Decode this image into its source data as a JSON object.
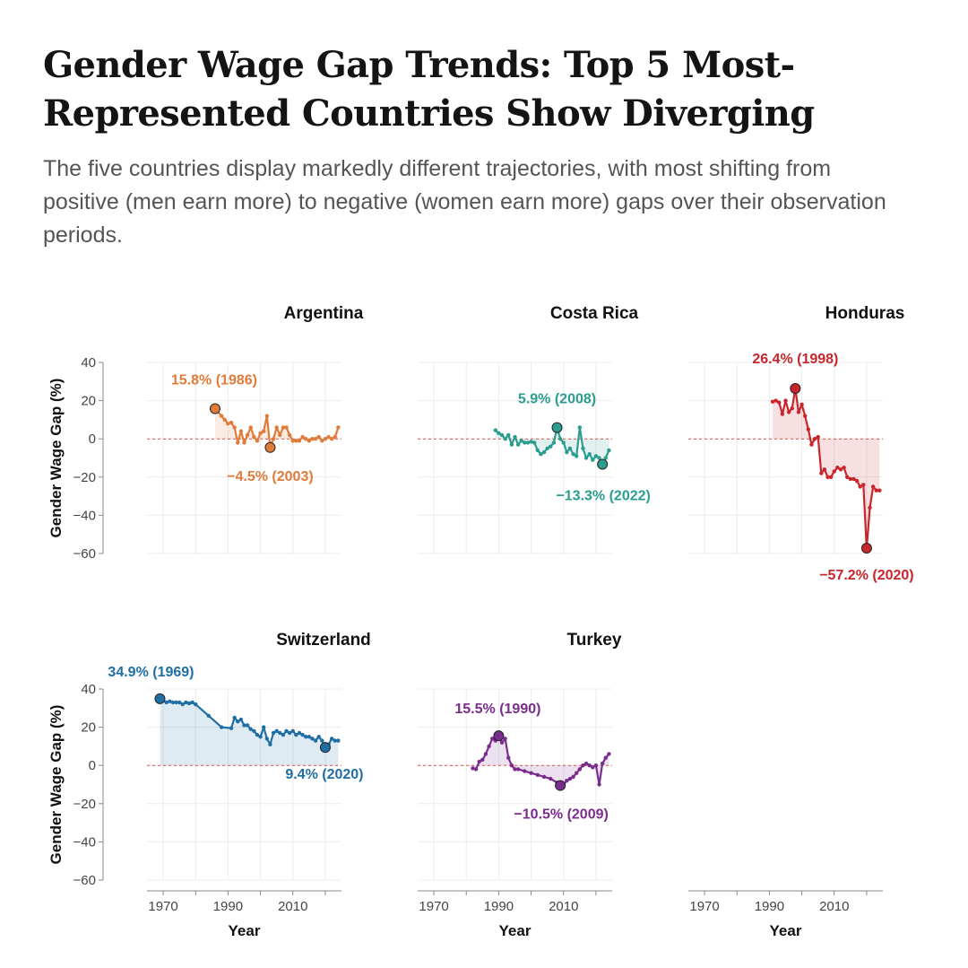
{
  "title": "Gender Wage Gap Trends: Top 5 Most-Represented Countries Show Diverging",
  "subtitle": "The five countries display markedly different trajectories, with most shifting from positive (men earn more) to negative (women earn more) gaps over their observation periods.",
  "chart_data": {
    "type": "line",
    "xlabel": "Year",
    "ylabel": "Gender Wage Gap (%)",
    "xlim": [
      1965,
      2025
    ],
    "ylim": [
      -60,
      40
    ],
    "x_ticks": [
      1970,
      1990,
      2010
    ],
    "y_ticks": [
      40,
      20,
      0,
      -20,
      -40,
      -60
    ],
    "reference_line": 0,
    "series": [
      {
        "name": "Argentina",
        "color": "#e07b39",
        "points": [
          [
            1986,
            15.8
          ],
          [
            1988,
            12
          ],
          [
            1989,
            10
          ],
          [
            1990,
            8
          ],
          [
            1991,
            8.5
          ],
          [
            1992,
            6
          ],
          [
            1993,
            -2
          ],
          [
            1994,
            4
          ],
          [
            1995,
            -2
          ],
          [
            1996,
            2
          ],
          [
            1997,
            6
          ],
          [
            1998,
            1
          ],
          [
            1999,
            -1
          ],
          [
            2000,
            3
          ],
          [
            2001,
            4
          ],
          [
            2002,
            12
          ],
          [
            2003,
            -4.5
          ],
          [
            2004,
            0
          ],
          [
            2005,
            6
          ],
          [
            2006,
            2
          ],
          [
            2007,
            6
          ],
          [
            2008,
            6
          ],
          [
            2009,
            2
          ],
          [
            2010,
            -1
          ],
          [
            2011,
            -1
          ],
          [
            2012,
            -1
          ],
          [
            2013,
            1
          ],
          [
            2014,
            0
          ],
          [
            2015,
            -1
          ],
          [
            2016,
            0
          ],
          [
            2017,
            0
          ],
          [
            2018,
            1
          ],
          [
            2019,
            -1
          ],
          [
            2020,
            0
          ],
          [
            2021,
            1
          ],
          [
            2022,
            0
          ],
          [
            2023,
            1
          ],
          [
            2024,
            6
          ]
        ],
        "annotations": [
          {
            "label": "15.8% (1986)",
            "x": 1986,
            "y": 15.8
          },
          {
            "label": "−4.5% (2003)",
            "x": 2003,
            "y": -4.5
          }
        ]
      },
      {
        "name": "Costa Rica",
        "color": "#2a9d8f",
        "points": [
          [
            1989,
            4.5
          ],
          [
            1990,
            3
          ],
          [
            1991,
            2
          ],
          [
            1992,
            0
          ],
          [
            1993,
            2
          ],
          [
            1994,
            -3
          ],
          [
            1995,
            1
          ],
          [
            1996,
            -3
          ],
          [
            1997,
            -1
          ],
          [
            1998,
            -2
          ],
          [
            1999,
            -2
          ],
          [
            2000,
            -1.5
          ],
          [
            2001,
            -2
          ],
          [
            2002,
            -6
          ],
          [
            2003,
            -8
          ],
          [
            2004,
            -7
          ],
          [
            2005,
            -5
          ],
          [
            2006,
            -4
          ],
          [
            2007,
            -2
          ],
          [
            2008,
            5.9
          ],
          [
            2009,
            0
          ],
          [
            2010,
            -2
          ],
          [
            2011,
            -7
          ],
          [
            2012,
            -5
          ],
          [
            2013,
            -8
          ],
          [
            2014,
            -9
          ],
          [
            2015,
            6
          ],
          [
            2016,
            -5
          ],
          [
            2017,
            -10
          ],
          [
            2018,
            -8
          ],
          [
            2019,
            -11
          ],
          [
            2020,
            -9
          ],
          [
            2021,
            -10
          ],
          [
            2022,
            -13.3
          ],
          [
            2023,
            -10
          ],
          [
            2024,
            -6
          ]
        ],
        "annotations": [
          {
            "label": "5.9% (2008)",
            "x": 2008,
            "y": 5.9
          },
          {
            "label": "−13.3% (2022)",
            "x": 2022,
            "y": -13.3
          }
        ]
      },
      {
        "name": "Honduras",
        "color": "#c8252c",
        "points": [
          [
            1991,
            19.5
          ],
          [
            1992,
            20
          ],
          [
            1993,
            19
          ],
          [
            1994,
            13
          ],
          [
            1995,
            20
          ],
          [
            1996,
            14
          ],
          [
            1997,
            16
          ],
          [
            1998,
            26.4
          ],
          [
            1999,
            14
          ],
          [
            2000,
            18
          ],
          [
            2001,
            12
          ],
          [
            2002,
            5
          ],
          [
            2003,
            -3
          ],
          [
            2004,
            0
          ],
          [
            2005,
            1
          ],
          [
            2006,
            -18
          ],
          [
            2007,
            -16
          ],
          [
            2008,
            -20
          ],
          [
            2009,
            -20
          ],
          [
            2010,
            -17
          ],
          [
            2011,
            -15
          ],
          [
            2012,
            -16
          ],
          [
            2013,
            -15
          ],
          [
            2014,
            -20
          ],
          [
            2015,
            -21
          ],
          [
            2016,
            -21
          ],
          [
            2017,
            -22
          ],
          [
            2018,
            -25
          ],
          [
            2019,
            -24
          ],
          [
            2020,
            -57.2
          ],
          [
            2021,
            -36
          ],
          [
            2022,
            -25
          ],
          [
            2023,
            -27
          ],
          [
            2024,
            -27
          ]
        ],
        "annotations": [
          {
            "label": "26.4% (1998)",
            "x": 1998,
            "y": 26.4
          },
          {
            "label": "−57.2% (2020)",
            "x": 2020,
            "y": -57.2
          }
        ]
      },
      {
        "name": "Switzerland",
        "color": "#1f6fa5",
        "points": [
          [
            1969,
            34.9
          ],
          [
            1970,
            34
          ],
          [
            1971,
            33
          ],
          [
            1972,
            33.5
          ],
          [
            1973,
            33
          ],
          [
            1974,
            33
          ],
          [
            1975,
            33
          ],
          [
            1976,
            32
          ],
          [
            1977,
            33
          ],
          [
            1978,
            32.5
          ],
          [
            1979,
            33
          ],
          [
            1980,
            32
          ],
          [
            1984,
            26
          ],
          [
            1988,
            20
          ],
          [
            1991,
            19.5
          ],
          [
            1992,
            25
          ],
          [
            1993,
            23
          ],
          [
            1994,
            24
          ],
          [
            1995,
            21
          ],
          [
            1996,
            21
          ],
          [
            1997,
            19
          ],
          [
            1998,
            18
          ],
          [
            1999,
            16
          ],
          [
            2000,
            15
          ],
          [
            2001,
            20
          ],
          [
            2002,
            14
          ],
          [
            2003,
            11
          ],
          [
            2004,
            17
          ],
          [
            2005,
            18
          ],
          [
            2006,
            17
          ],
          [
            2007,
            16
          ],
          [
            2008,
            18
          ],
          [
            2009,
            17
          ],
          [
            2010,
            18
          ],
          [
            2011,
            16
          ],
          [
            2012,
            17
          ],
          [
            2013,
            16
          ],
          [
            2014,
            15
          ],
          [
            2015,
            15
          ],
          [
            2016,
            14
          ],
          [
            2017,
            13
          ],
          [
            2018,
            15
          ],
          [
            2019,
            13
          ],
          [
            2020,
            9.4
          ],
          [
            2021,
            11
          ],
          [
            2022,
            14
          ],
          [
            2023,
            13
          ],
          [
            2024,
            13
          ]
        ],
        "annotations": [
          {
            "label": "34.9% (1969)",
            "x": 1969,
            "y": 34.9
          },
          {
            "label": "9.4% (2020)",
            "x": 2020,
            "y": 9.4
          }
        ]
      },
      {
        "name": "Turkey",
        "color": "#7b2d8e",
        "points": [
          [
            1982,
            -1.5
          ],
          [
            1983,
            -2
          ],
          [
            1984,
            2
          ],
          [
            1985,
            3
          ],
          [
            1986,
            6
          ],
          [
            1987,
            10
          ],
          [
            1988,
            14
          ],
          [
            1989,
            13
          ],
          [
            1990,
            15.5
          ],
          [
            1991,
            12
          ],
          [
            1992,
            14
          ],
          [
            1993,
            4
          ],
          [
            1994,
            0
          ],
          [
            1995,
            -2
          ],
          [
            1996,
            -2
          ],
          [
            1998,
            -3
          ],
          [
            2000,
            -4
          ],
          [
            2002,
            -5
          ],
          [
            2004,
            -6
          ],
          [
            2006,
            -7
          ],
          [
            2008,
            -9
          ],
          [
            2009,
            -10.5
          ],
          [
            2010,
            -10
          ],
          [
            2011,
            -8
          ],
          [
            2012,
            -7
          ],
          [
            2013,
            -6
          ],
          [
            2014,
            -4
          ],
          [
            2015,
            -2
          ],
          [
            2016,
            0
          ],
          [
            2017,
            1
          ],
          [
            2018,
            0
          ],
          [
            2019,
            -1
          ],
          [
            2020,
            0
          ],
          [
            2021,
            -10
          ],
          [
            2022,
            1
          ],
          [
            2023,
            4
          ],
          [
            2024,
            6
          ]
        ],
        "annotations": [
          {
            "label": "15.5% (1990)",
            "x": 1990,
            "y": 15.5
          },
          {
            "label": "−10.5% (2009)",
            "x": 2009,
            "y": -10.5
          }
        ]
      }
    ]
  }
}
